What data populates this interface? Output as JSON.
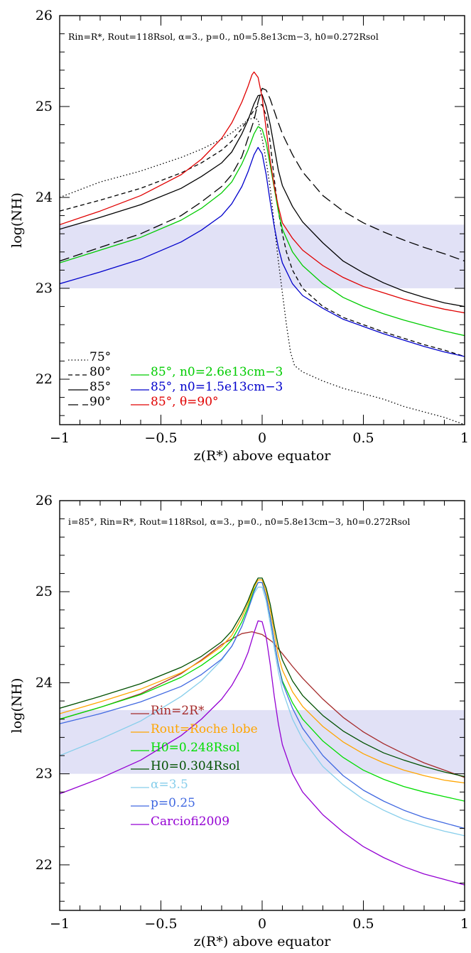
{
  "chart_data": [
    {
      "type": "line",
      "xlabel": "z(R*) above equator",
      "ylabel": "log(NH)",
      "xlim": [
        -1,
        1
      ],
      "ylim": [
        21.5,
        26
      ],
      "xticks": [
        "−1",
        "−0.5",
        "0",
        "0.5",
        "1"
      ],
      "yticks": [
        "22",
        "23",
        "24",
        "25",
        "26"
      ],
      "annotation": "Rin=R*, Rout=118Rsol, α=3., p=0., n0=5.8e13cm−3, h0=0.272Rsol",
      "shaded_band": [
        23.0,
        23.7
      ],
      "band_color": "#e1e1f6",
      "legend_left": [
        {
          "label": "75°",
          "style": "dotted"
        },
        {
          "label": "80°",
          "style": "dashed"
        },
        {
          "label": "85°",
          "style": "solid"
        },
        {
          "label": "90°",
          "style": "longdash"
        }
      ],
      "legend_right": [
        {
          "label": "85°,  n0=2.6e13cm−3",
          "color": "#00cc00"
        },
        {
          "label": "85°,  n0=1.5e13cm−3",
          "color": "#0000cc"
        },
        {
          "label": "85°,  θ=90°",
          "color": "#e00000"
        }
      ],
      "series": [
        {
          "name": "75°",
          "color": "#000000",
          "dash": "1.5,3",
          "x": [
            -1,
            -0.8,
            -0.6,
            -0.4,
            -0.3,
            -0.2,
            -0.15,
            -0.1,
            -0.07,
            -0.04,
            -0.02,
            0,
            0.02,
            0.04,
            0.06,
            0.08,
            0.1,
            0.12,
            0.14,
            0.16,
            0.2,
            0.3,
            0.4,
            0.5,
            0.6,
            0.7,
            0.8,
            0.9,
            1
          ],
          "y": [
            24.0,
            24.17,
            24.29,
            24.44,
            24.53,
            24.64,
            24.71,
            24.8,
            24.85,
            24.88,
            24.85,
            24.65,
            24.4,
            24.1,
            23.7,
            23.3,
            22.95,
            22.6,
            22.3,
            22.15,
            22.08,
            21.98,
            21.9,
            21.84,
            21.78,
            21.7,
            21.64,
            21.58,
            21.5
          ]
        },
        {
          "name": "80°",
          "color": "#000000",
          "dash": "6,4",
          "x": [
            -1,
            -0.8,
            -0.6,
            -0.4,
            -0.3,
            -0.2,
            -0.15,
            -0.1,
            -0.07,
            -0.04,
            -0.02,
            0,
            0.02,
            0.04,
            0.06,
            0.08,
            0.1,
            0.12,
            0.15,
            0.2,
            0.3,
            0.4,
            0.5,
            0.6,
            0.7,
            0.8,
            0.9,
            1
          ],
          "y": [
            23.85,
            23.97,
            24.1,
            24.27,
            24.38,
            24.52,
            24.62,
            24.76,
            24.86,
            24.96,
            25.01,
            25.02,
            24.9,
            24.6,
            24.2,
            23.85,
            23.6,
            23.4,
            23.2,
            23.0,
            22.8,
            22.68,
            22.6,
            22.52,
            22.45,
            22.38,
            22.32,
            22.25
          ]
        },
        {
          "name": "85°",
          "color": "#000000",
          "dash": "",
          "x": [
            -1,
            -0.8,
            -0.6,
            -0.4,
            -0.3,
            -0.2,
            -0.15,
            -0.1,
            -0.07,
            -0.04,
            -0.02,
            0,
            0.02,
            0.04,
            0.06,
            0.08,
            0.1,
            0.15,
            0.2,
            0.3,
            0.4,
            0.5,
            0.6,
            0.7,
            0.8,
            0.9,
            1
          ],
          "y": [
            23.65,
            23.78,
            23.92,
            24.1,
            24.23,
            24.38,
            24.5,
            24.7,
            24.85,
            25.03,
            25.12,
            25.13,
            25.0,
            24.8,
            24.55,
            24.3,
            24.13,
            23.9,
            23.73,
            23.5,
            23.3,
            23.17,
            23.06,
            22.97,
            22.9,
            22.84,
            22.8
          ]
        },
        {
          "name": "90°",
          "color": "#000000",
          "dash": "14,6",
          "x": [
            -1,
            -0.8,
            -0.6,
            -0.4,
            -0.3,
            -0.2,
            -0.15,
            -0.1,
            -0.07,
            -0.04,
            -0.02,
            0,
            0.02,
            0.04,
            0.06,
            0.08,
            0.1,
            0.15,
            0.2,
            0.3,
            0.4,
            0.5,
            0.6,
            0.7,
            0.8,
            0.9,
            1
          ],
          "y": [
            23.3,
            23.45,
            23.6,
            23.8,
            23.95,
            24.12,
            24.25,
            24.45,
            24.65,
            24.85,
            25.05,
            25.2,
            25.18,
            25.08,
            24.95,
            24.82,
            24.7,
            24.47,
            24.28,
            24.02,
            23.85,
            23.72,
            23.62,
            23.53,
            23.45,
            23.38,
            23.3
          ]
        },
        {
          "name": "85°,  n0=2.6e13cm−3",
          "color": "#00cc00",
          "dash": "",
          "x": [
            -1,
            -0.8,
            -0.6,
            -0.4,
            -0.3,
            -0.2,
            -0.15,
            -0.1,
            -0.07,
            -0.04,
            -0.02,
            0,
            0.02,
            0.04,
            0.06,
            0.08,
            0.1,
            0.15,
            0.2,
            0.3,
            0.4,
            0.5,
            0.6,
            0.7,
            0.8,
            0.9,
            1
          ],
          "y": [
            23.28,
            23.42,
            23.56,
            23.75,
            23.88,
            24.05,
            24.17,
            24.37,
            24.52,
            24.7,
            24.78,
            24.75,
            24.6,
            24.35,
            24.1,
            23.85,
            23.65,
            23.4,
            23.25,
            23.05,
            22.9,
            22.8,
            22.72,
            22.65,
            22.59,
            22.53,
            22.48
          ]
        },
        {
          "name": "85°,  n0=1.5e13cm−3",
          "color": "#0000cc",
          "dash": "",
          "x": [
            -1,
            -0.8,
            -0.6,
            -0.4,
            -0.3,
            -0.2,
            -0.15,
            -0.1,
            -0.07,
            -0.04,
            -0.02,
            0,
            0.02,
            0.04,
            0.06,
            0.08,
            0.1,
            0.15,
            0.2,
            0.3,
            0.4,
            0.5,
            0.6,
            0.7,
            0.8,
            0.9,
            1
          ],
          "y": [
            23.05,
            23.18,
            23.32,
            23.51,
            23.64,
            23.8,
            23.93,
            24.12,
            24.28,
            24.47,
            24.55,
            24.48,
            24.25,
            23.95,
            23.68,
            23.45,
            23.28,
            23.05,
            22.92,
            22.78,
            22.66,
            22.58,
            22.5,
            22.43,
            22.36,
            22.3,
            22.25
          ]
        },
        {
          "name": "85°,  θ=90°",
          "color": "#e00000",
          "dash": "",
          "x": [
            -1,
            -0.8,
            -0.6,
            -0.4,
            -0.3,
            -0.2,
            -0.15,
            -0.1,
            -0.07,
            -0.05,
            -0.04,
            -0.02,
            0,
            0.02,
            0.04,
            0.06,
            0.08,
            0.1,
            0.15,
            0.2,
            0.3,
            0.4,
            0.5,
            0.6,
            0.7,
            0.8,
            0.9,
            1
          ],
          "y": [
            23.7,
            23.85,
            24.02,
            24.25,
            24.42,
            24.65,
            24.82,
            25.05,
            25.22,
            25.35,
            25.38,
            25.32,
            25.1,
            24.75,
            24.4,
            24.12,
            23.9,
            23.72,
            23.55,
            23.42,
            23.25,
            23.12,
            23.02,
            22.95,
            22.88,
            22.82,
            22.77,
            22.73
          ]
        }
      ]
    },
    {
      "type": "line",
      "xlabel": "z(R*) above equator",
      "ylabel": "log(NH)",
      "xlim": [
        -1,
        1
      ],
      "ylim": [
        21.5,
        26
      ],
      "xticks": [
        "−1",
        "−0.5",
        "0",
        "0.5",
        "1"
      ],
      "yticks": [
        "22",
        "23",
        "24",
        "25",
        "26"
      ],
      "annotation": "i=85°, Rin=R*, Rout=118Rsol, α=3., p=0., n0=5.8e13cm−3, h0=0.272Rsol",
      "shaded_band": [
        23.0,
        23.7
      ],
      "band_color": "#e1e1f6",
      "legend": [
        {
          "label": "Rin=2R*",
          "color": "#a52a2a"
        },
        {
          "label": "Rout=Roche lobe",
          "color": "#ffa500"
        },
        {
          "label": "H0=0.248Rsol",
          "color": "#00dd00"
        },
        {
          "label": "H0=0.304Rsol",
          "color": "#005000"
        },
        {
          "label": "α=3.5",
          "color": "#87ceeb"
        },
        {
          "label": "p=0.25",
          "color": "#4169e1"
        },
        {
          "label": "Carciofi2009",
          "color": "#9400d3"
        }
      ],
      "series": [
        {
          "name": "Rin=2R*",
          "color": "#a52a2a",
          "x": [
            -1,
            -0.8,
            -0.6,
            -0.4,
            -0.3,
            -0.2,
            -0.1,
            -0.05,
            0,
            0.05,
            0.1,
            0.15,
            0.2,
            0.3,
            0.4,
            0.5,
            0.6,
            0.7,
            0.8,
            0.9,
            1
          ],
          "y": [
            23.6,
            23.73,
            23.88,
            24.1,
            24.25,
            24.42,
            24.54,
            24.56,
            24.53,
            24.45,
            24.32,
            24.18,
            24.05,
            23.82,
            23.62,
            23.46,
            23.33,
            23.22,
            23.12,
            23.04,
            22.96
          ]
        },
        {
          "name": "Rout=Roche lobe",
          "color": "#ffa500",
          "x": [
            -1,
            -0.8,
            -0.6,
            -0.4,
            -0.3,
            -0.2,
            -0.15,
            -0.1,
            -0.07,
            -0.04,
            -0.02,
            0,
            0.02,
            0.04,
            0.06,
            0.08,
            0.1,
            0.15,
            0.2,
            0.3,
            0.4,
            0.5,
            0.6,
            0.7,
            0.8,
            0.9,
            1
          ],
          "y": [
            23.66,
            23.79,
            23.93,
            24.11,
            24.24,
            24.4,
            24.52,
            24.72,
            24.87,
            25.05,
            25.13,
            25.13,
            25.0,
            24.8,
            24.55,
            24.3,
            24.14,
            23.9,
            23.74,
            23.52,
            23.35,
            23.22,
            23.12,
            23.04,
            22.98,
            22.93,
            22.9
          ]
        },
        {
          "name": "H0=0.248Rsol",
          "color": "#00dd00",
          "x": [
            -1,
            -0.8,
            -0.6,
            -0.4,
            -0.3,
            -0.2,
            -0.15,
            -0.1,
            -0.07,
            -0.04,
            -0.02,
            0,
            0.02,
            0.04,
            0.06,
            0.08,
            0.1,
            0.15,
            0.2,
            0.3,
            0.4,
            0.5,
            0.6,
            0.7,
            0.8,
            0.9,
            1
          ],
          "y": [
            23.6,
            23.73,
            23.87,
            24.06,
            24.19,
            24.35,
            24.47,
            24.67,
            24.83,
            25.02,
            25.1,
            25.1,
            24.95,
            24.72,
            24.45,
            24.2,
            24.02,
            23.78,
            23.6,
            23.36,
            23.18,
            23.04,
            22.94,
            22.86,
            22.8,
            22.75,
            22.7
          ]
        },
        {
          "name": "H0=0.304Rsol",
          "color": "#005000",
          "x": [
            -1,
            -0.8,
            -0.6,
            -0.4,
            -0.3,
            -0.2,
            -0.15,
            -0.1,
            -0.07,
            -0.04,
            -0.02,
            0,
            0.02,
            0.04,
            0.06,
            0.08,
            0.1,
            0.15,
            0.2,
            0.3,
            0.4,
            0.5,
            0.6,
            0.7,
            0.8,
            0.9,
            1
          ],
          "y": [
            23.72,
            23.85,
            23.99,
            24.17,
            24.29,
            24.45,
            24.57,
            24.76,
            24.9,
            25.07,
            25.15,
            25.15,
            25.04,
            24.86,
            24.62,
            24.4,
            24.25,
            24.02,
            23.86,
            23.64,
            23.47,
            23.34,
            23.23,
            23.15,
            23.08,
            23.02,
            22.97
          ]
        },
        {
          "name": "α=3.5",
          "color": "#87ceeb",
          "x": [
            -1,
            -0.8,
            -0.6,
            -0.4,
            -0.3,
            -0.2,
            -0.15,
            -0.1,
            -0.07,
            -0.04,
            -0.02,
            0,
            0.02,
            0.04,
            0.06,
            0.08,
            0.1,
            0.15,
            0.2,
            0.3,
            0.4,
            0.5,
            0.6,
            0.7,
            0.8,
            0.9,
            1
          ],
          "y": [
            23.2,
            23.38,
            23.58,
            23.85,
            24.02,
            24.25,
            24.4,
            24.62,
            24.8,
            24.98,
            25.05,
            25.05,
            24.9,
            24.65,
            24.38,
            24.12,
            23.92,
            23.6,
            23.38,
            23.08,
            22.88,
            22.72,
            22.6,
            22.5,
            22.43,
            22.37,
            22.32
          ]
        },
        {
          "name": "p=0.25",
          "color": "#4169e1",
          "x": [
            -1,
            -0.8,
            -0.6,
            -0.4,
            -0.3,
            -0.2,
            -0.15,
            -0.1,
            -0.07,
            -0.04,
            -0.02,
            0,
            0.02,
            0.04,
            0.06,
            0.08,
            0.1,
            0.15,
            0.2,
            0.3,
            0.4,
            0.5,
            0.6,
            0.7,
            0.8,
            0.9,
            1
          ],
          "y": [
            23.55,
            23.66,
            23.79,
            23.96,
            24.09,
            24.26,
            24.4,
            24.62,
            24.8,
            25.0,
            25.1,
            25.1,
            24.95,
            24.72,
            24.45,
            24.2,
            24.0,
            23.72,
            23.5,
            23.2,
            22.98,
            22.82,
            22.7,
            22.6,
            22.52,
            22.46,
            22.4
          ]
        },
        {
          "name": "Carciofi2009",
          "color": "#9400d3",
          "x": [
            -1,
            -0.8,
            -0.6,
            -0.4,
            -0.3,
            -0.2,
            -0.15,
            -0.1,
            -0.07,
            -0.04,
            -0.02,
            0,
            0.02,
            0.04,
            0.06,
            0.08,
            0.1,
            0.15,
            0.2,
            0.3,
            0.4,
            0.5,
            0.6,
            0.7,
            0.8,
            0.9,
            1
          ],
          "y": [
            22.78,
            22.95,
            23.15,
            23.42,
            23.6,
            23.82,
            23.97,
            24.17,
            24.33,
            24.55,
            24.68,
            24.67,
            24.5,
            24.2,
            23.85,
            23.55,
            23.32,
            23.0,
            22.8,
            22.55,
            22.36,
            22.2,
            22.08,
            21.98,
            21.9,
            21.84,
            21.78
          ]
        }
      ]
    }
  ]
}
